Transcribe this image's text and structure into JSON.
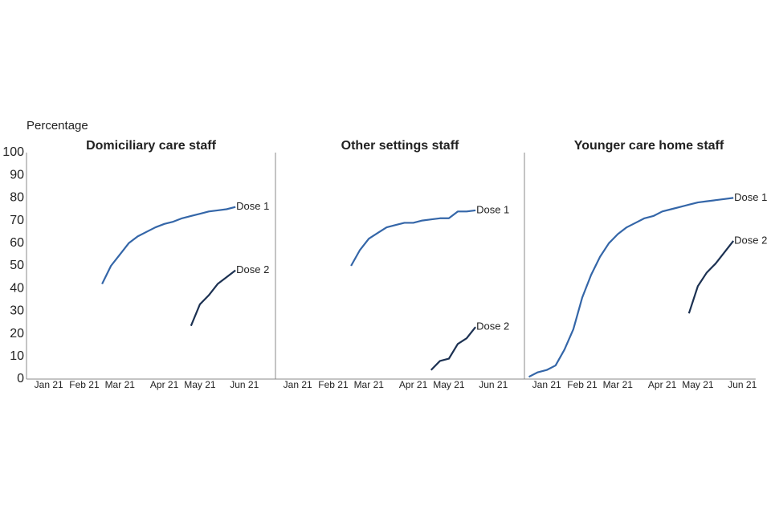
{
  "chart_data": [
    {
      "type": "line",
      "title": "Domiciliary care staff",
      "y_label": "Percentage",
      "categories": [
        null,
        null,
        "Jan 21",
        null,
        null,
        null,
        "Feb 21",
        null,
        null,
        null,
        "Mar 21",
        null,
        null,
        null,
        null,
        "Apr 21",
        null,
        null,
        null,
        "May 21",
        null,
        null,
        null,
        null,
        "Jun 21",
        null,
        null,
        null
      ],
      "series": [
        {
          "name": "Dose 1",
          "color": "#3466a8",
          "values": [
            null,
            null,
            null,
            null,
            null,
            null,
            null,
            null,
            42,
            50,
            55,
            60,
            63,
            65,
            67,
            68.5,
            69.5,
            71,
            72,
            73,
            74,
            74.5,
            75,
            76,
            null,
            null,
            null,
            null
          ]
        },
        {
          "name": "Dose 2",
          "color": "#1c3152",
          "values": [
            null,
            null,
            null,
            null,
            null,
            null,
            null,
            null,
            null,
            null,
            null,
            null,
            null,
            null,
            null,
            null,
            null,
            null,
            23.5,
            33,
            37,
            42,
            45,
            48,
            null,
            null,
            null,
            null
          ]
        }
      ],
      "ylim": [
        0,
        100
      ],
      "yticks": [
        0,
        10,
        20,
        30,
        40,
        50,
        60,
        70,
        80,
        90,
        100
      ]
    },
    {
      "type": "line",
      "title": "Other settings staff",
      "categories": [
        null,
        null,
        "Jan 21",
        null,
        null,
        null,
        "Feb 21",
        null,
        null,
        null,
        "Mar 21",
        null,
        null,
        null,
        null,
        "Apr 21",
        null,
        null,
        null,
        "May 21",
        null,
        null,
        null,
        null,
        "Jun 21",
        null,
        null,
        null
      ],
      "series": [
        {
          "name": "Dose 1",
          "color": "#3466a8",
          "values": [
            null,
            null,
            null,
            null,
            null,
            null,
            null,
            null,
            50,
            57,
            62,
            64.5,
            67,
            68,
            69,
            69,
            70,
            70.5,
            71,
            71,
            74,
            74,
            74.5,
            null,
            null,
            null,
            null,
            null
          ]
        },
        {
          "name": "Dose 2",
          "color": "#1c3152",
          "values": [
            null,
            null,
            null,
            null,
            null,
            null,
            null,
            null,
            null,
            null,
            null,
            null,
            null,
            null,
            null,
            null,
            null,
            4,
            8,
            9,
            15.5,
            18,
            23,
            null,
            null,
            null,
            null,
            null
          ]
        }
      ],
      "ylim": [
        0,
        100
      ]
    },
    {
      "type": "line",
      "title": "Younger care home staff",
      "categories": [
        null,
        null,
        "Jan 21",
        null,
        null,
        null,
        "Feb 21",
        null,
        null,
        null,
        "Mar 21",
        null,
        null,
        null,
        null,
        "Apr 21",
        null,
        null,
        null,
        "May 21",
        null,
        null,
        null,
        null,
        "Jun 21",
        null
      ],
      "series": [
        {
          "name": "Dose 1",
          "color": "#3466a8",
          "values": [
            1,
            3,
            4,
            6,
            13,
            22,
            36,
            46,
            54,
            60,
            64,
            67,
            69,
            71,
            72,
            74,
            75,
            76,
            77,
            78,
            78.5,
            79,
            79.5,
            80,
            null,
            null
          ]
        },
        {
          "name": "Dose 2",
          "color": "#1c3152",
          "values": [
            null,
            null,
            null,
            null,
            null,
            null,
            null,
            null,
            null,
            null,
            null,
            null,
            null,
            null,
            null,
            null,
            null,
            null,
            29,
            41,
            47,
            51,
            56,
            61,
            null,
            null
          ]
        }
      ],
      "ylim": [
        0,
        100
      ]
    }
  ]
}
